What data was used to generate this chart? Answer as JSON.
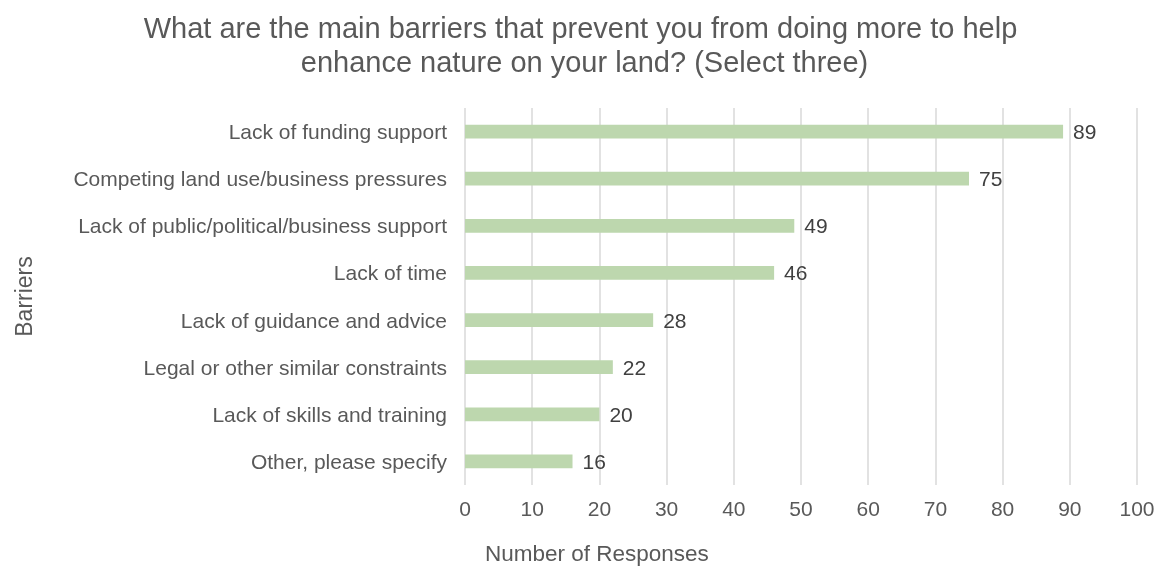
{
  "chart_data": {
    "type": "bar",
    "orientation": "horizontal",
    "title": "What are the main barriers that prevent you from doing more to help enhance nature on your land? (Select three)",
    "xlabel": "Number of Responses",
    "ylabel": "Barriers",
    "categories": [
      "Lack of funding support",
      "Competing land use/business pressures",
      "Lack of public/political/business support",
      "Lack of time",
      "Lack of guidance and advice",
      "Legal or other similar constraints",
      "Lack of skills and training",
      "Other, please specify"
    ],
    "values": [
      89,
      75,
      49,
      46,
      28,
      22,
      20,
      16
    ],
    "color": "#bdd7ae",
    "xlim": [
      0,
      100
    ],
    "xticks": [
      0,
      10,
      20,
      30,
      40,
      50,
      60,
      70,
      80,
      90,
      100
    ],
    "grid": "x",
    "data_labels": true
  }
}
